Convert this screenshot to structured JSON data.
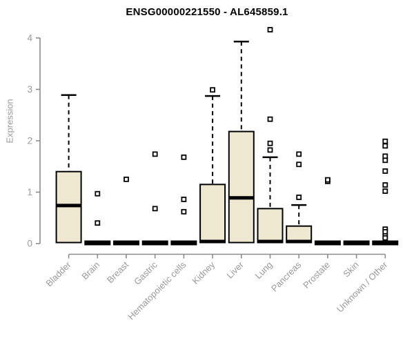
{
  "chart_data": {
    "type": "boxplot",
    "title": "ENSG00000221550 - AL645859.1",
    "ylabel": "Expression",
    "xlabel": "",
    "ylim": [
      0,
      4
    ],
    "yticks": [
      0,
      1,
      2,
      3,
      4
    ],
    "grid": false,
    "legend": false,
    "colors": {
      "box_fill": "#EDE8CF",
      "box_stroke": "#000000",
      "median": "#000000",
      "axis_line": "#8c8c8c",
      "tick_text": "#9a9a9a",
      "title_text": "#000000",
      "outlier_stroke": "#000000",
      "outlier_fill": "#ffffff"
    },
    "categories": [
      "Bladder",
      "Brain",
      "Breast",
      "Gastric",
      "Hematopoietic cells",
      "Kidney",
      "Liver",
      "Lung",
      "Pancreas",
      "Prostate",
      "Skin",
      "Unknown / Other"
    ],
    "boxes": [
      {
        "category": "Bladder",
        "q1": 0.02,
        "median": 0.74,
        "q3": 1.4,
        "whisker_low": 0.02,
        "whisker_high": 2.89,
        "outliers": []
      },
      {
        "category": "Brain",
        "q1": 0.0,
        "median": 0.01,
        "q3": 0.02,
        "whisker_low": 0.0,
        "whisker_high": 0.02,
        "outliers": [
          0.97,
          0.4
        ]
      },
      {
        "category": "Breast",
        "q1": 0.0,
        "median": 0.01,
        "q3": 0.02,
        "whisker_low": 0.0,
        "whisker_high": 0.02,
        "outliers": [
          1.25
        ]
      },
      {
        "category": "Gastric",
        "q1": 0.0,
        "median": 0.01,
        "q3": 0.02,
        "whisker_low": 0.0,
        "whisker_high": 0.02,
        "outliers": [
          1.74,
          0.68
        ]
      },
      {
        "category": "Hematopoietic cells",
        "q1": 0.0,
        "median": 0.01,
        "q3": 0.02,
        "whisker_low": 0.0,
        "whisker_high": 0.02,
        "outliers": [
          1.68,
          0.86,
          0.62
        ]
      },
      {
        "category": "Kidney",
        "q1": 0.02,
        "median": 0.04,
        "q3": 1.15,
        "whisker_low": 0.02,
        "whisker_high": 2.87,
        "outliers": [
          2.99
        ]
      },
      {
        "category": "Liver",
        "q1": 0.02,
        "median": 0.89,
        "q3": 2.18,
        "whisker_low": 0.02,
        "whisker_high": 3.93,
        "outliers": []
      },
      {
        "category": "Lung",
        "q1": 0.02,
        "median": 0.04,
        "q3": 0.68,
        "whisker_low": 0.02,
        "whisker_high": 1.68,
        "outliers": [
          4.16,
          2.42,
          1.95,
          1.82
        ]
      },
      {
        "category": "Pancreas",
        "q1": 0.02,
        "median": 0.04,
        "q3": 0.34,
        "whisker_low": 0.02,
        "whisker_high": 0.75,
        "outliers": [
          1.74,
          1.54,
          0.9
        ]
      },
      {
        "category": "Prostate",
        "q1": 0.0,
        "median": 0.01,
        "q3": 0.02,
        "whisker_low": 0.0,
        "whisker_high": 0.02,
        "outliers": [
          1.21,
          1.24
        ]
      },
      {
        "category": "Skin",
        "q1": 0.0,
        "median": 0.01,
        "q3": 0.02,
        "whisker_low": 0.0,
        "whisker_high": 0.02,
        "outliers": []
      },
      {
        "category": "Unknown / Other",
        "q1": 0.0,
        "median": 0.01,
        "q3": 0.02,
        "whisker_low": 0.0,
        "whisker_high": 0.02,
        "outliers": [
          1.99,
          1.9,
          1.7,
          1.62,
          1.41,
          1.14,
          1.02,
          0.28,
          0.23,
          0.15,
          0.11
        ]
      }
    ]
  }
}
